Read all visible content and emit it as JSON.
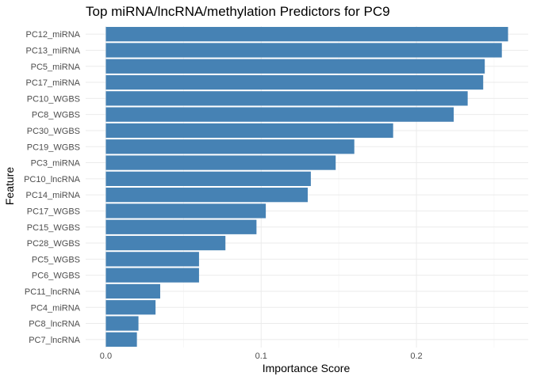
{
  "chart_data": {
    "type": "bar",
    "orientation": "horizontal",
    "title": "Top miRNA/lncRNA/methylation Predictors for PC9",
    "xlabel": "Importance Score",
    "ylabel": "Feature",
    "categories": [
      "PC12_miRNA",
      "PC13_miRNA",
      "PC5_miRNA",
      "PC17_miRNA",
      "PC10_WGBS",
      "PC8_WGBS",
      "PC30_WGBS",
      "PC19_WGBS",
      "PC3_miRNA",
      "PC10_lncRNA",
      "PC14_miRNA",
      "PC17_WGBS",
      "PC15_WGBS",
      "PC28_WGBS",
      "PC5_WGBS",
      "PC6_WGBS",
      "PC11_lncRNA",
      "PC4_miRNA",
      "PC8_lncRNA",
      "PC7_lncRNA"
    ],
    "values": [
      0.259,
      0.255,
      0.244,
      0.243,
      0.233,
      0.224,
      0.185,
      0.16,
      0.148,
      0.132,
      0.13,
      0.103,
      0.097,
      0.077,
      0.06,
      0.06,
      0.035,
      0.032,
      0.021,
      0.02
    ],
    "xlim": [
      -0.013,
      0.272
    ],
    "xticks": [
      0.0,
      0.1,
      0.2
    ],
    "xtick_labels": [
      "0.0",
      "0.1",
      "0.2"
    ],
    "bar_color": "#4682b4",
    "grid": true,
    "legend": "none"
  }
}
